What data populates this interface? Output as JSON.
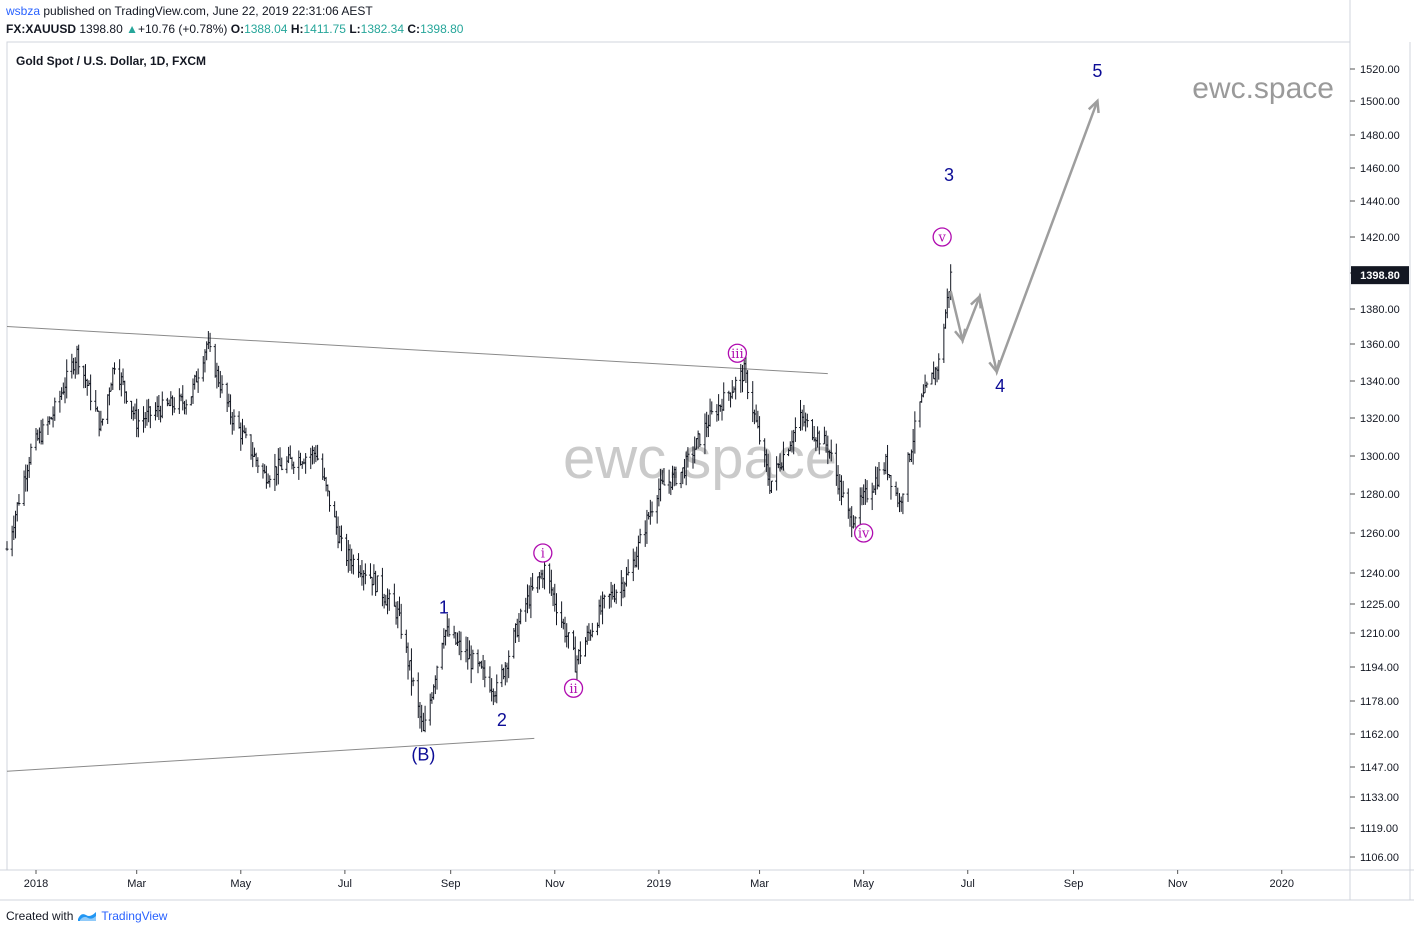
{
  "header": {
    "published_user": "wsbza",
    "published_text": "published on TradingView.com, June 22, 2019 22:31:06 AEST",
    "symbol": "FX:XAUUSD",
    "last": "1398.80",
    "change": "+10.76 (+0.78%)",
    "o_label": "O:",
    "o_value": "1388.04",
    "h_label": "H:",
    "h_value": "1411.75",
    "l_label": "L:",
    "l_value": "1382.34",
    "c_label": "C:",
    "c_value": "1398.80"
  },
  "footer": {
    "created_with": "Created with",
    "brand": "TradingView"
  },
  "colors": {
    "bars": "#131722",
    "wave_blue": "#0c0c96",
    "wave_magenta": "#b00cb0",
    "lines": "#8a8a8a",
    "price_tag": "#131722",
    "up": "#26a69a"
  },
  "chart_data": {
    "type": "bar",
    "title": "Gold Spot / U.S. Dollar, 1D, FXCM",
    "watermark_small": "ewc.space",
    "watermark_large": "ewc.space",
    "last_price_label": "1398.80",
    "y_ticks": [
      1106,
      1119,
      1133,
      1147,
      1162,
      1178,
      1194,
      1210,
      1225,
      1240,
      1260,
      1280,
      1300,
      1320,
      1340,
      1360,
      1380,
      1400,
      1420,
      1440,
      1460,
      1480,
      1500,
      1520
    ],
    "y_tick_labels": [
      "1106.00",
      "1119.00",
      "1133.00",
      "1147.00",
      "1162.00",
      "1178.00",
      "1194.00",
      "1210.00",
      "1225.00",
      "1240.00",
      "1260.00",
      "1280.00",
      "1300.00",
      "1320.00",
      "1340.00",
      "1360.00",
      "1380.00",
      "1400.00",
      "1420.00",
      "1440.00",
      "1460.00",
      "1480.00",
      "1500.00",
      "1520.00"
    ],
    "x_ticks": [
      {
        "date": "2018-01-01",
        "label": "2018"
      },
      {
        "date": "2018-03-01",
        "label": "Mar"
      },
      {
        "date": "2018-05-01",
        "label": "May"
      },
      {
        "date": "2018-07-01",
        "label": "Jul"
      },
      {
        "date": "2018-09-01",
        "label": "Sep"
      },
      {
        "date": "2018-11-01",
        "label": "Nov"
      },
      {
        "date": "2019-01-01",
        "label": "2019"
      },
      {
        "date": "2019-03-01",
        "label": "Mar"
      },
      {
        "date": "2019-05-01",
        "label": "May"
      },
      {
        "date": "2019-07-01",
        "label": "Jul"
      },
      {
        "date": "2019-09-01",
        "label": "Sep"
      },
      {
        "date": "2019-11-01",
        "label": "Nov"
      },
      {
        "date": "2020-01-01",
        "label": "2020"
      }
    ],
    "x_range": [
      "2017-12-15",
      "2020-02-10"
    ],
    "series": [
      {
        "name": "XAUUSD close (approx.)",
        "points": [
          [
            "2017-12-15",
            1252
          ],
          [
            "2017-12-29",
            1303
          ],
          [
            "2018-01-10",
            1320
          ],
          [
            "2018-01-25",
            1355
          ],
          [
            "2018-02-08",
            1315
          ],
          [
            "2018-02-16",
            1350
          ],
          [
            "2018-03-01",
            1318
          ],
          [
            "2018-03-15",
            1325
          ],
          [
            "2018-04-01",
            1330
          ],
          [
            "2018-04-11",
            1360
          ],
          [
            "2018-04-25",
            1322
          ],
          [
            "2018-05-15",
            1290
          ],
          [
            "2018-06-01",
            1298
          ],
          [
            "2018-06-14",
            1302
          ],
          [
            "2018-06-30",
            1250
          ],
          [
            "2018-07-15",
            1240
          ],
          [
            "2018-08-01",
            1220
          ],
          [
            "2018-08-16",
            1162
          ],
          [
            "2018-08-28",
            1212
          ],
          [
            "2018-09-15",
            1195
          ],
          [
            "2018-09-28",
            1183
          ],
          [
            "2018-10-15",
            1225
          ],
          [
            "2018-10-26",
            1242
          ],
          [
            "2018-11-13",
            1196
          ],
          [
            "2018-11-30",
            1225
          ],
          [
            "2018-12-15",
            1240
          ],
          [
            "2018-12-31",
            1282
          ],
          [
            "2019-01-15",
            1292
          ],
          [
            "2019-01-31",
            1320
          ],
          [
            "2019-02-20",
            1345
          ],
          [
            "2019-03-07",
            1285
          ],
          [
            "2019-03-25",
            1320
          ],
          [
            "2019-04-10",
            1305
          ],
          [
            "2019-04-23",
            1266
          ],
          [
            "2019-05-14",
            1296
          ],
          [
            "2019-05-22",
            1275
          ],
          [
            "2019-06-03",
            1327
          ],
          [
            "2019-06-14",
            1350
          ],
          [
            "2019-06-21",
            1398.8
          ]
        ]
      }
    ],
    "wave_labels": [
      {
        "text": "(B)",
        "date": "2018-08-16",
        "price": 1150,
        "color": "blue"
      },
      {
        "text": "1",
        "date": "2018-08-28",
        "price": 1220,
        "color": "blue"
      },
      {
        "text": "2",
        "date": "2018-10-01",
        "price": 1166,
        "color": "blue"
      },
      {
        "text": "3",
        "date": "2019-06-20",
        "price": 1452,
        "color": "blue"
      },
      {
        "text": "4",
        "date": "2019-07-20",
        "price": 1334,
        "color": "blue"
      },
      {
        "text": "5",
        "date": "2019-09-15",
        "price": 1515,
        "color": "blue"
      },
      {
        "text": "i",
        "date": "2018-10-25",
        "price": 1250,
        "color": "magenta",
        "circled": true
      },
      {
        "text": "ii",
        "date": "2018-11-12",
        "price": 1184,
        "color": "magenta",
        "circled": true
      },
      {
        "text": "iii",
        "date": "2019-02-16",
        "price": 1355,
        "color": "magenta",
        "circled": true
      },
      {
        "text": "iv",
        "date": "2019-05-01",
        "price": 1260,
        "color": "magenta",
        "circled": true
      },
      {
        "text": "v",
        "date": "2019-06-16",
        "price": 1420,
        "color": "magenta",
        "circled": true
      }
    ],
    "trendlines": [
      {
        "from": [
          "2017-12-15",
          1370
        ],
        "to": [
          "2019-04-10",
          1344
        ]
      },
      {
        "from": [
          "2017-12-15",
          1145
        ],
        "to": [
          "2018-10-20",
          1160
        ]
      }
    ],
    "projection_path": [
      [
        "2019-06-21",
        1390
      ],
      [
        "2019-06-28",
        1362
      ],
      [
        "2019-07-08",
        1387
      ],
      [
        "2019-07-18",
        1345
      ],
      [
        "2019-09-15",
        1500
      ]
    ],
    "grid": false,
    "price_scale_side": "right"
  }
}
